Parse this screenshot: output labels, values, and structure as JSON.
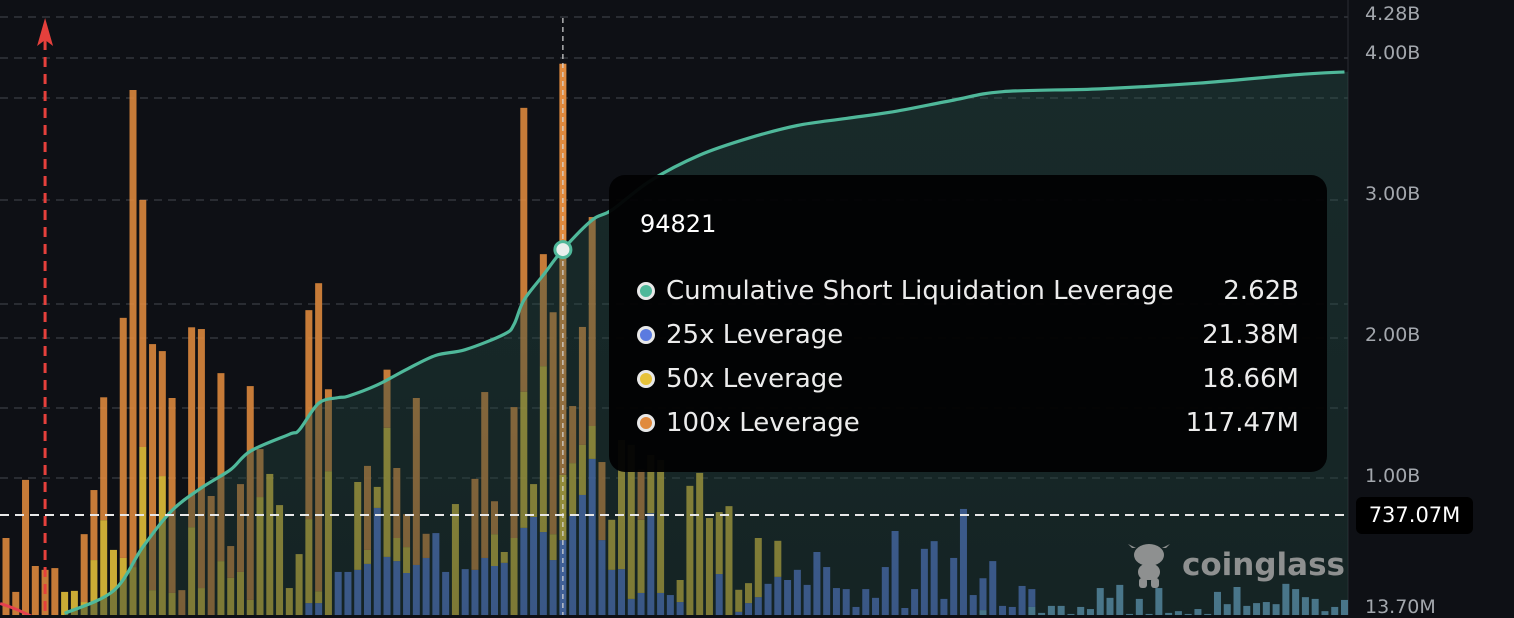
{
  "colors": {
    "background": "#0e1015",
    "cumulative": "#4fb89a",
    "x25": "#5b7be0",
    "x50": "#e6c23a",
    "x100": "#e08a3e",
    "light": "#7ab8e6",
    "current_price_marker": "#e5403c",
    "red_series": "#e5404f"
  },
  "right_axis": {
    "ticks": [
      {
        "label": "4.28B",
        "value": 4.28
      },
      {
        "label": "4.00B",
        "value": 4.0
      },
      {
        "label": "3.00B",
        "value": 3.0
      },
      {
        "label": "2.00B",
        "value": 2.0
      },
      {
        "label": "1.00B",
        "value": 1.0
      },
      {
        "label": "13.70M",
        "value": 0.0137
      }
    ]
  },
  "crosshair": {
    "value_label": "737.07M",
    "bar_index": 57
  },
  "tooltip": {
    "title": "94821",
    "rows": [
      {
        "label": "Cumulative Short Liquidation Leverage",
        "value": "2.62B",
        "color": "#4fb89a"
      },
      {
        "label": "25x Leverage",
        "value": "21.38M",
        "color": "#5b7be0"
      },
      {
        "label": "50x Leverage",
        "value": "18.66M",
        "color": "#e6c23a"
      },
      {
        "label": "100x Leverage",
        "value": "117.47M",
        "color": "#e08a3e"
      }
    ]
  },
  "watermark": {
    "text": "coinglass"
  },
  "chart_data": {
    "type": "bar",
    "stacked": true,
    "grid": true,
    "units": "M (bars), B (cumulative line)",
    "selected_price": "94821",
    "series": [
      {
        "name": "25x Leverage",
        "color": "#5b7be0",
        "values": [
          0,
          0,
          0,
          0,
          0,
          0,
          0,
          0,
          0,
          0,
          0,
          0,
          0,
          0,
          0,
          0,
          0,
          0,
          0,
          0,
          0,
          0,
          0,
          0,
          0,
          0,
          0,
          0,
          0,
          0,
          0,
          3.4,
          3.4,
          0,
          12.3,
          12.3,
          12.9,
          14.6,
          30.6,
          16.6,
          15.4,
          12,
          14.3,
          16.3,
          23.4,
          12.3,
          0,
          13.1,
          12.9,
          16.3,
          14,
          14.9,
          0,
          24.9,
          28,
          23.7,
          15.7,
          21.38,
          28.3,
          34.3,
          44.6,
          21.4,
          12.9,
          13.1,
          4.6,
          6.3,
          29.1,
          6.3,
          5.7,
          3.7,
          0,
          0,
          0,
          11.7,
          0,
          0.9,
          3.4,
          5.1,
          8.9,
          10.9,
          10,
          12.9,
          8.6,
          18,
          13.7,
          7.7,
          7.4,
          2.3,
          7.4,
          4.9,
          13.7,
          24,
          2,
          7.4,
          18.9,
          21.1,
          4.6,
          16.3,
          30.3,
          5.7,
          9.1,
          15.4,
          2.6,
          2.3,
          8.3,
          5.1,
          0,
          0,
          0,
          0,
          0,
          0,
          0,
          0,
          0,
          0,
          0,
          0,
          0,
          0,
          0,
          0,
          0,
          0,
          0,
          0,
          0,
          0,
          0,
          0,
          0,
          0,
          0,
          0,
          0,
          0,
          0,
          0
        ]
      },
      {
        "name": "50x Leverage",
        "color": "#e6c23a",
        "values": [
          0,
          0,
          0,
          0,
          0,
          0,
          6.6,
          6.9,
          3.7,
          15.7,
          27.1,
          18.6,
          16.3,
          13.7,
          48,
          7.1,
          39.7,
          6.3,
          0,
          25.1,
          7.7,
          0,
          15.4,
          10.6,
          12.3,
          4.3,
          33.7,
          40.3,
          31.4,
          7.7,
          17.4,
          24,
          3.4,
          41.1,
          0,
          0,
          25.1,
          4,
          6,
          36.9,
          6.6,
          7.4,
          0,
          0,
          0,
          0,
          31.7,
          0,
          0,
          0,
          9.1,
          3.1,
          22,
          38.9,
          9.4,
          47.4,
          7.4,
          18.66,
          15.1,
          14.3,
          9.4,
          0,
          14.3,
          36.9,
          44,
          20.9,
          16.6,
          38,
          0,
          6.3,
          36.9,
          40.6,
          27.7,
          17.7,
          31.1,
          6.3,
          5.7,
          16.9,
          0,
          10.3,
          0,
          0,
          0,
          0,
          0,
          0,
          0,
          0,
          0,
          0,
          0,
          0,
          0,
          0,
          0,
          0,
          0,
          0,
          0,
          0,
          0,
          0,
          0,
          0,
          0,
          0,
          0,
          0,
          0,
          0,
          0,
          0,
          0,
          0,
          0,
          0,
          0,
          0,
          0,
          0,
          0,
          0,
          0,
          0,
          0,
          0,
          0,
          0,
          0,
          0,
          0,
          0,
          0,
          0,
          0,
          0,
          0,
          0
        ]
      },
      {
        "name": "100x Leverage",
        "color": "#e08a3e",
        "values": [
          22,
          6.6,
          38.6,
          14,
          12.9,
          13.4,
          0,
          0,
          19.4,
          20,
          35.1,
          0,
          68.6,
          136.3,
          70.6,
          70.3,
          35.7,
          55.7,
          7.1,
          57.1,
          74,
          34,
          53.7,
          9.1,
          25.1,
          61.1,
          13.7,
          0,
          0,
          0,
          0,
          59.7,
          88,
          23.4,
          0,
          0,
          0,
          24,
          0,
          16.6,
          20,
          9.4,
          47.7,
          6.9,
          0,
          0,
          0,
          0,
          26,
          47.4,
          9.4,
          0,
          37.4,
          81.1,
          0,
          32,
          63.4,
          117.47,
          16.3,
          33.7,
          59.7,
          22.3,
          0,
          0,
          0,
          14.3,
          0,
          0,
          0,
          0,
          0,
          0,
          0,
          0,
          0,
          0,
          0,
          0,
          0,
          0,
          0,
          0,
          0,
          0,
          0,
          0,
          0,
          0,
          0,
          0,
          0,
          0,
          0,
          0,
          0,
          0,
          0,
          0,
          0,
          0,
          0,
          0,
          0,
          0,
          0,
          0,
          0,
          0,
          0,
          0,
          0,
          0,
          0,
          0,
          0,
          0,
          0,
          0,
          0,
          0,
          0,
          0,
          0,
          0,
          0,
          0,
          0,
          0,
          0,
          0,
          0,
          0,
          0,
          0,
          0,
          0,
          0,
          0
        ]
      },
      {
        "color": "#7ab8e6",
        "values": [
          0,
          0,
          0,
          0,
          0,
          0,
          0,
          0,
          0,
          0,
          0,
          0,
          0,
          0,
          0,
          0,
          0,
          0,
          0,
          0,
          0,
          0,
          0,
          0,
          0,
          0,
          0,
          0,
          0,
          0,
          0,
          0,
          0,
          0,
          0,
          0,
          0,
          0,
          0,
          0,
          0,
          0,
          0,
          0,
          0,
          0,
          0,
          0,
          0,
          0,
          0,
          0,
          0,
          0,
          0,
          0,
          0,
          0,
          0,
          0,
          0,
          0,
          0,
          0,
          0,
          0,
          0,
          0,
          0,
          0,
          0,
          0,
          0,
          0,
          0,
          0,
          0,
          0,
          0,
          0,
          0,
          0,
          0,
          0,
          0,
          0,
          0,
          0,
          0,
          0,
          0,
          0,
          0,
          0,
          0,
          0,
          0,
          0,
          0,
          0,
          1.4,
          0,
          0,
          0,
          0,
          2.3,
          0.6,
          2.6,
          2.6,
          0.3,
          2.3,
          1.7,
          7.7,
          4.9,
          8.6,
          0.3,
          4.6,
          0.3,
          7.7,
          0.6,
          1.1,
          0.3,
          1.7,
          0.3,
          6.6,
          3.1,
          8,
          2.6,
          3.4,
          3.7,
          3.1,
          8.9,
          7.4,
          5.1,
          4.6,
          1.1,
          2.3,
          4.3
        ]
      }
    ],
    "cumulative_line": {
      "name": "Cumulative Short Liquidation Leverage",
      "color": "#4fb89a",
      "points": [
        [
          6,
          0.04
        ],
        [
          11,
          0.2
        ],
        [
          14,
          0.51
        ],
        [
          17,
          0.77
        ],
        [
          20,
          0.93
        ],
        [
          23,
          1.06
        ],
        [
          25,
          1.19
        ],
        [
          29,
          1.31
        ],
        [
          30,
          1.34
        ],
        [
          32,
          1.53
        ],
        [
          34,
          1.57
        ],
        [
          35,
          1.58
        ],
        [
          38,
          1.66
        ],
        [
          41,
          1.77
        ],
        [
          44,
          1.87
        ],
        [
          47,
          1.91
        ],
        [
          51,
          2.02
        ],
        [
          52,
          2.09
        ],
        [
          53,
          2.26
        ],
        [
          55,
          2.44
        ],
        [
          57,
          2.62
        ],
        [
          60,
          2.83
        ],
        [
          62,
          2.9
        ],
        [
          66,
          3.11
        ],
        [
          71,
          3.29
        ],
        [
          76,
          3.41
        ],
        [
          81,
          3.5
        ],
        [
          86,
          3.55
        ],
        [
          91,
          3.6
        ],
        [
          97,
          3.68
        ],
        [
          102,
          3.74
        ],
        [
          112,
          3.76
        ],
        [
          122,
          3.8
        ],
        [
          132,
          3.86
        ],
        [
          137,
          3.88
        ]
      ]
    },
    "red_series": {
      "color": "#e5404f",
      "points": [
        [
          -0.6,
          0.11
        ],
        [
          1,
          0.07
        ],
        [
          3.2,
          0.0
        ]
      ]
    },
    "current_price_index": 4,
    "right_ylim": [
      0,
      4.28
    ]
  }
}
